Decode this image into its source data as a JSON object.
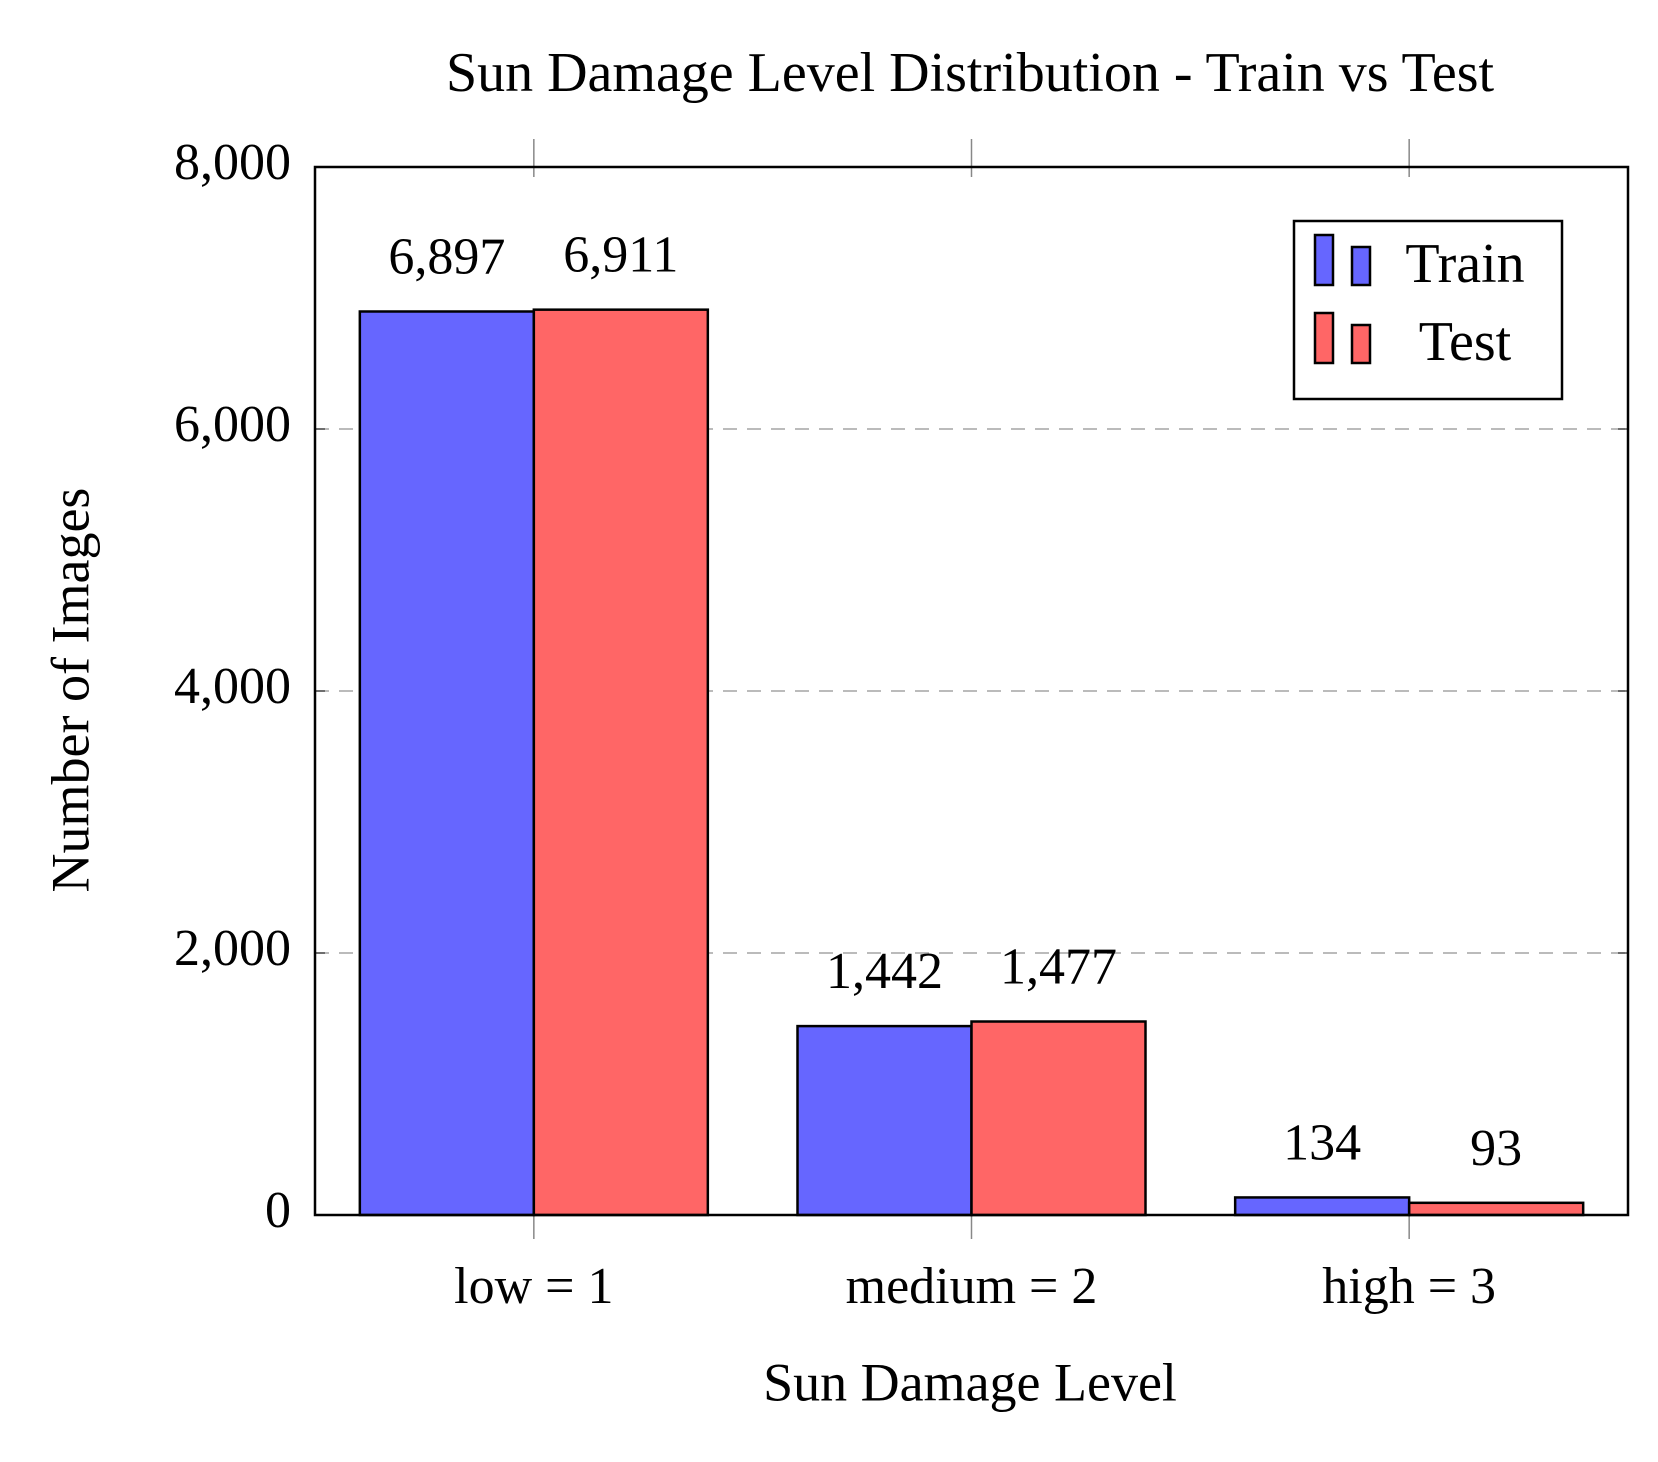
{
  "chart_data": {
    "type": "bar",
    "title": "Sun Damage Level Distribution - Train vs Test",
    "x_label": "Sun Damage Level",
    "y_label": "Number of Images",
    "categories": [
      "low = 1",
      "medium = 2",
      "high = 3"
    ],
    "series": [
      {
        "name": "Train",
        "color": "#6666ff",
        "values": [
          6897,
          1442,
          134
        ],
        "value_labels": [
          "6,897",
          "1,442",
          "134"
        ]
      },
      {
        "name": "Test",
        "color": "#ff6666",
        "values": [
          6911,
          1477,
          93
        ],
        "value_labels": [
          "6,911",
          "1,477",
          "93"
        ]
      }
    ],
    "ylim": [
      0,
      8000
    ],
    "yticks": [
      0,
      {
        "value": 2000,
        "label": "2,000"
      },
      {
        "value": 4000,
        "label": "4,000"
      },
      {
        "value": 6000,
        "label": "6,000"
      },
      {
        "value": 8000,
        "label": "8,000"
      }
    ],
    "grid": true,
    "legend": "upper right"
  }
}
